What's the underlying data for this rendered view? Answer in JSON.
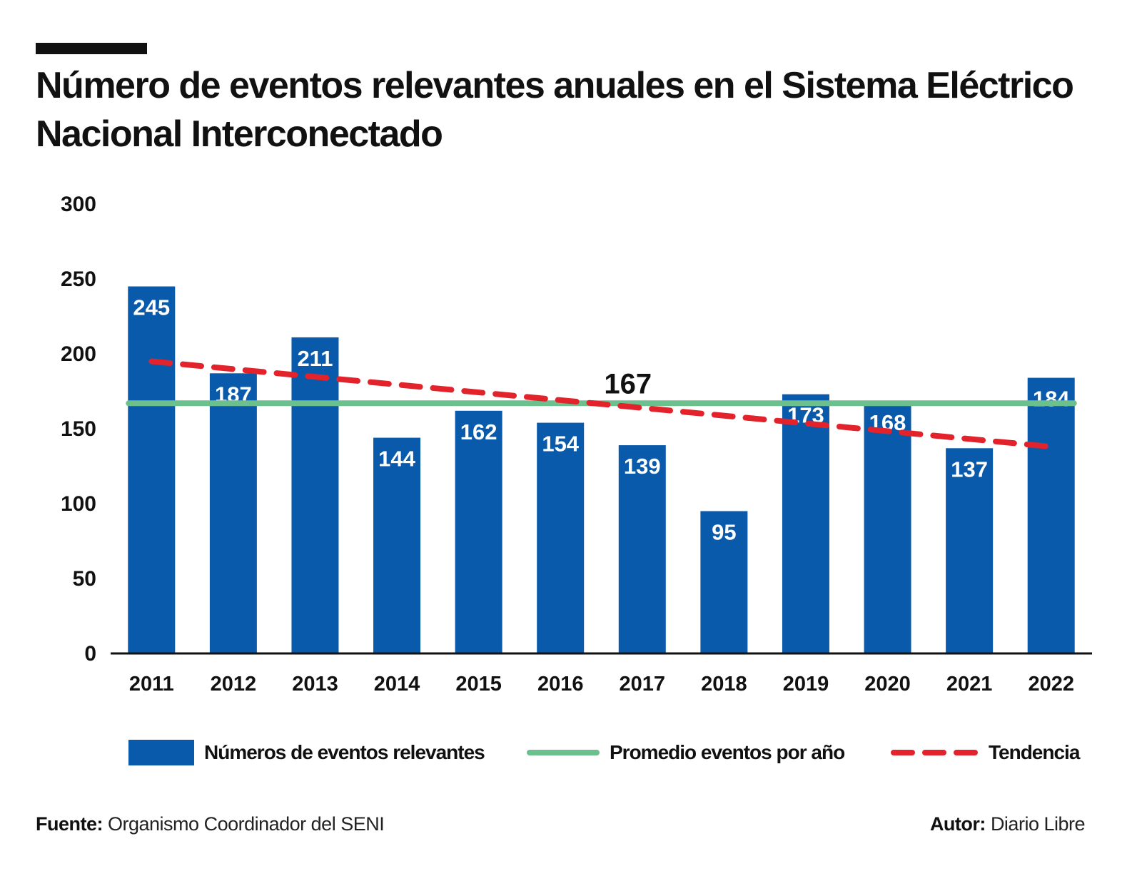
{
  "title": "Número de eventos relevantes anuales en el Sistema Eléctrico Nacional Interconectado",
  "chart_data": {
    "type": "bar",
    "categories": [
      "2011",
      "2012",
      "2013",
      "2014",
      "2015",
      "2016",
      "2017",
      "2018",
      "2019",
      "2020",
      "2021",
      "2022"
    ],
    "values": [
      245,
      187,
      211,
      144,
      162,
      154,
      139,
      95,
      173,
      168,
      137,
      184
    ],
    "ylim": [
      0,
      300
    ],
    "yticks": [
      0,
      50,
      100,
      150,
      200,
      250,
      300
    ],
    "average": {
      "name": "Promedio eventos por año",
      "value": 167,
      "label": "167"
    },
    "trend": {
      "name": "Tendencia",
      "start": 195,
      "end": 138
    },
    "xlabel": "",
    "ylabel": ""
  },
  "colors": {
    "bar": "#0a5aab",
    "average": "#6cc08d",
    "trend": "#e3232c",
    "axis": "#111111"
  },
  "legend": {
    "bars": "Números de eventos relevantes",
    "average": "Promedio eventos por año",
    "trend": "Tendencia"
  },
  "footer": {
    "source_label": "Fuente:",
    "source_text": "Organismo Coordinador del SENI",
    "author_label": "Autor:",
    "author_text": "Diario Libre"
  }
}
